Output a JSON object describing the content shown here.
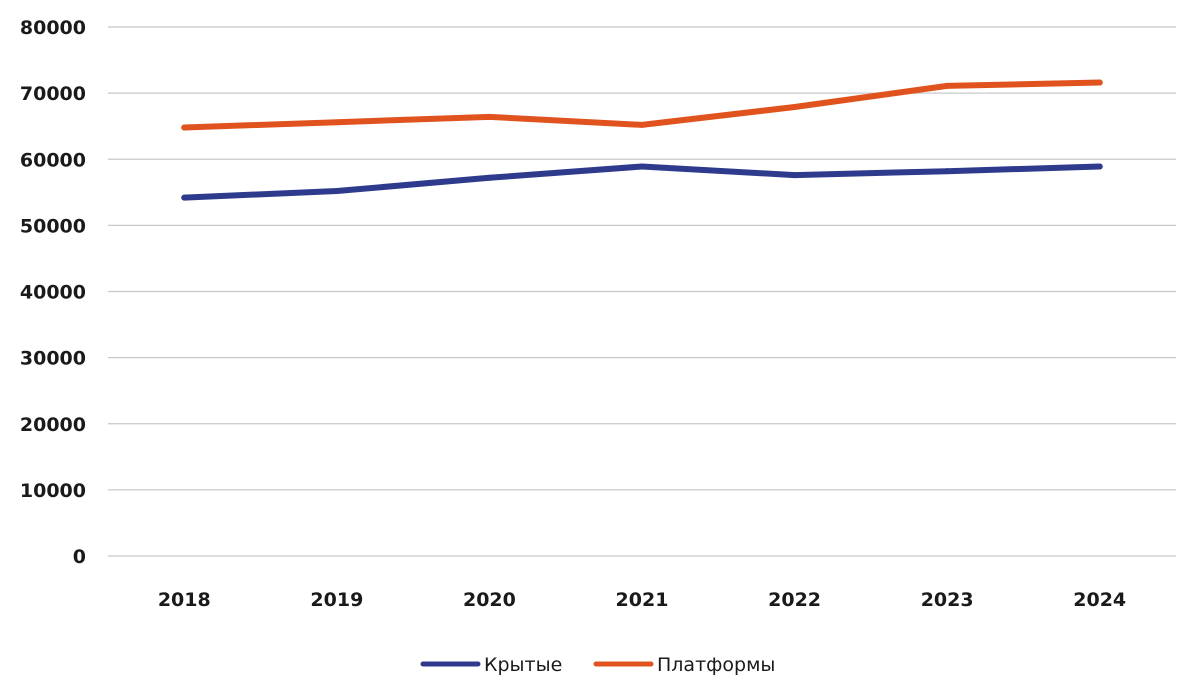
{
  "chart_data": {
    "type": "line",
    "categories": [
      "2018",
      "2019",
      "2020",
      "2021",
      "2022",
      "2023",
      "2024"
    ],
    "series": [
      {
        "name": "Крытые",
        "color": "#2e3a8c",
        "values": [
          54200,
          55200,
          57200,
          58900,
          57600,
          58200,
          58900
        ]
      },
      {
        "name": "Платформы",
        "color": "#e0531f",
        "values": [
          64800,
          65600,
          66400,
          65200,
          67900,
          71100,
          71600
        ]
      }
    ],
    "yticks": [
      "0",
      "10000",
      "20000",
      "30000",
      "40000",
      "50000",
      "60000",
      "70000",
      "80000"
    ],
    "ylim": [
      0,
      80000
    ],
    "grid": true,
    "legend_position": "bottom-center",
    "title": "",
    "xlabel": "",
    "ylabel": ""
  }
}
